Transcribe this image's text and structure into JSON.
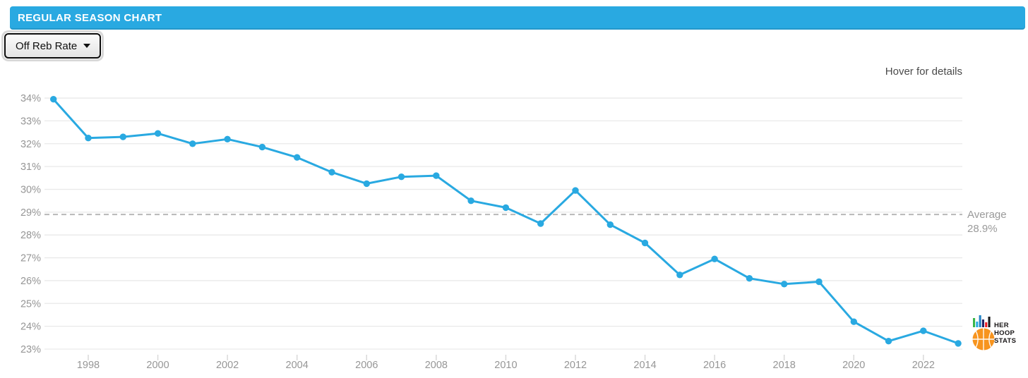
{
  "header": {
    "title": "REGULAR SEASON CHART",
    "bg_color": "#29A9E1"
  },
  "controls": {
    "metric_dropdown": {
      "value": "Off Reb Rate"
    }
  },
  "hint": "Hover for details",
  "chart_data": {
    "type": "line",
    "title": "",
    "xlabel": "",
    "ylabel": "",
    "x": [
      1997,
      1998,
      1999,
      2000,
      2001,
      2002,
      2003,
      2004,
      2005,
      2006,
      2007,
      2008,
      2009,
      2010,
      2011,
      2012,
      2013,
      2014,
      2015,
      2016,
      2017,
      2018,
      2019,
      2020,
      2021,
      2022,
      2023
    ],
    "series": [
      {
        "name": "Off Reb Rate",
        "values": [
          33.95,
          32.25,
          32.3,
          32.45,
          32.0,
          32.2,
          31.85,
          31.4,
          30.75,
          30.25,
          30.55,
          30.6,
          29.5,
          29.2,
          28.5,
          29.95,
          28.45,
          27.65,
          26.25,
          26.95,
          26.1,
          25.85,
          25.95,
          24.2,
          23.35,
          23.8,
          23.25
        ]
      }
    ],
    "ylim": [
      23,
      34
    ],
    "ytick_step": 1,
    "ytick_suffix": "%",
    "xticks": [
      1998,
      2000,
      2002,
      2004,
      2006,
      2008,
      2010,
      2012,
      2014,
      2016,
      2018,
      2020,
      2022
    ],
    "grid": "horizontal",
    "legend_position": "none",
    "average": {
      "value": 28.9,
      "label_line1": "Average",
      "label_line2": "28.9%"
    },
    "colors": {
      "line": "#29A9E1",
      "point": "#29A9E1",
      "gridline": "#e9e9e9",
      "tick": "#d9d9d9",
      "axis_label": "#969696",
      "average_line": "#b8b8b8",
      "average_text": "#9a9a9a"
    }
  },
  "logo": {
    "lines": [
      "HER",
      "HOOP",
      "STATS"
    ],
    "ball_color": "#F7941E",
    "seam_color": "#ffffff",
    "bars": [
      {
        "color": "#39B54A",
        "height": 13
      },
      {
        "color": "#29ABE2",
        "height": 8
      },
      {
        "color": "#2484C6",
        "height": 17
      },
      {
        "color": "#262262",
        "height": 11
      },
      {
        "color": "#ED1C24",
        "height": 7
      },
      {
        "color": "#1A1A1A",
        "height": 15
      }
    ]
  }
}
